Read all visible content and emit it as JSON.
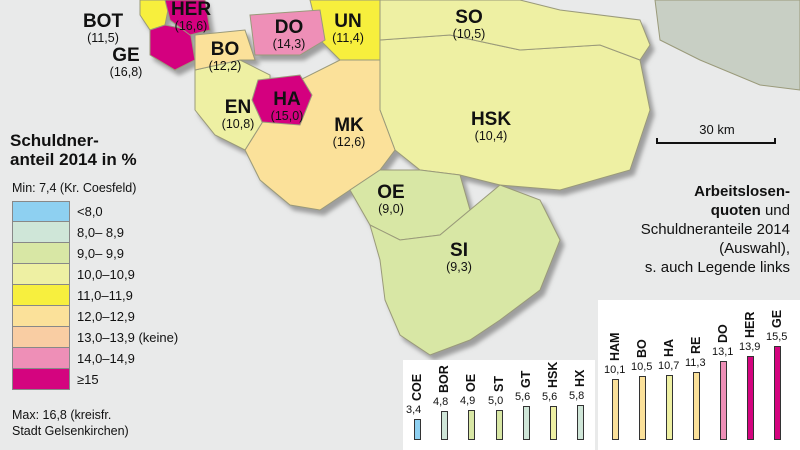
{
  "regions": [
    {
      "code": "BOT",
      "value": "(11,5)",
      "color": "#f7ef3e"
    },
    {
      "code": "GE",
      "value": "(16,8)",
      "color": "#d4047f"
    },
    {
      "code": "HER",
      "value": "(16,6)",
      "color": "#d4047f"
    },
    {
      "code": "BO",
      "value": "(12,2)",
      "color": "#fbe19a"
    },
    {
      "code": "DO",
      "value": "(14,3)",
      "color": "#ee8fb7"
    },
    {
      "code": "UN",
      "value": "(11,4)",
      "color": "#f7ef3e"
    },
    {
      "code": "SO",
      "value": "(10,5)",
      "color": "#eef0a3"
    },
    {
      "code": "EN",
      "value": "(10,8)",
      "color": "#eef0a3"
    },
    {
      "code": "HA",
      "value": "(15,0)",
      "color": "#d4047f"
    },
    {
      "code": "MK",
      "value": "(12,6)",
      "color": "#fbe19a"
    },
    {
      "code": "HSK",
      "value": "(10,4)",
      "color": "#eef0a3"
    },
    {
      "code": "OE",
      "value": "(9,0)",
      "color": "#d8e7a5"
    },
    {
      "code": "SI",
      "value": "(9,3)",
      "color": "#d8e7a5"
    }
  ],
  "legend": {
    "title_line1": "Schuldner-",
    "title_line2": "anteil 2014 in %",
    "min": "Min: 7,4 (Kr. Coesfeld)",
    "classes": [
      {
        "label": "<8,0",
        "color": "#8ed0f1"
      },
      {
        "label": "8,0–  8,9",
        "color": "#cfe6d8"
      },
      {
        "label": "9,0–  9,9",
        "color": "#d8e7a5"
      },
      {
        "label": "10,0–10,9",
        "color": "#eef0a3"
      },
      {
        "label": "11,0–11,9",
        "color": "#f7ef3e"
      },
      {
        "label": "12,0–12,9",
        "color": "#fbe19a"
      },
      {
        "label": "13,0–13,9 (keine)",
        "color": "#f9cda3"
      },
      {
        "label": "14,0–14,9",
        "color": "#ee8fb7"
      },
      {
        "label": "≥15",
        "color": "#d4047f"
      }
    ],
    "max_line1": "Max: 16,8 (kreisfr.",
    "max_line2": "Stadt Gelsenkirchen)"
  },
  "scale_label": "30 km",
  "side_text": {
    "line1_bold": "Arbeitslosen-",
    "line2_bold": "quoten",
    "line2_rest": " und",
    "line3": "Schuldneranteile 2014",
    "line4": "(Auswahl),",
    "line5": "s. auch Legende links"
  },
  "chart_data": {
    "type": "bar",
    "categories": [
      "COE",
      "BOR",
      "OE",
      "ST",
      "GT",
      "HSK",
      "HX",
      "HAM",
      "BO",
      "HA",
      "RE",
      "DO",
      "HER",
      "GE"
    ],
    "values": [
      3.4,
      4.8,
      4.9,
      5.0,
      5.6,
      5.6,
      5.8,
      10.1,
      10.5,
      10.7,
      11.3,
      13.1,
      13.9,
      15.5
    ],
    "value_labels": [
      "3,4",
      "4,8",
      "4,9",
      "5,0",
      "5,6",
      "5,6",
      "5,8",
      "10,1",
      "10,5",
      "10,7",
      "11,3",
      "13,1",
      "13,9",
      "15,5"
    ],
    "colors": [
      "#8ed0f1",
      "#cfe6d8",
      "#d8e7a5",
      "#d8e7a5",
      "#cfe6d8",
      "#eef0a3",
      "#cfe6d8",
      "#fbe19a",
      "#fbe19a",
      "#eef0a3",
      "#fbe19a",
      "#ee8fb7",
      "#d4047f",
      "#d4047f"
    ]
  }
}
